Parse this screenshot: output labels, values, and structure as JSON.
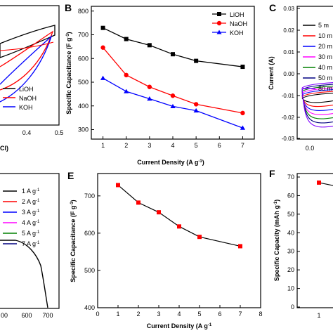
{
  "panels": {
    "A": {
      "legend": [
        "LiOH",
        "NaOH",
        "KOH"
      ],
      "xticks": [
        "0.4",
        "0.5"
      ],
      "xlabel_fragment": "Cl)"
    },
    "B": {
      "letter": "B"
    },
    "C": {
      "letter": "C",
      "ylabel": "Current (A)",
      "yticks": [
        "0.03",
        "0.02",
        "0.01",
        "0.00",
        "-0.01",
        "-0.02",
        "-0.03"
      ],
      "xticks": [
        "0.0"
      ],
      "legend": [
        "5 m",
        "10 m",
        "20 m",
        "30 m",
        "40 m",
        "50 m",
        "80 m"
      ]
    },
    "D": {
      "legend": [
        "1 A g",
        "2 A g",
        "3 A g",
        "4 A g",
        "5 A g",
        "7 A g"
      ],
      "legend_sup": "-1",
      "xticks": [
        "00",
        "600",
        "700"
      ]
    },
    "E": {
      "letter": "E"
    },
    "F": {
      "letter": "F",
      "ylabel": "Specific Capacity (mAh g",
      "ylabel_sup": "-1",
      "ylabel_end": ")",
      "yticks": [
        "70",
        "60",
        "50",
        "40",
        "30",
        "20",
        "10",
        "0"
      ],
      "xticks": [
        "1"
      ]
    }
  },
  "colors": {
    "LiOH": "#000000",
    "NaOH": "#ff0000",
    "KOH": "#0000ff",
    "E": "#000000",
    "E_marker": "#ff0000",
    "cv": [
      "#000000",
      "#ff0000",
      "#0000ff",
      "#ff00ff",
      "#008000",
      "#000080",
      "#8000ff"
    ],
    "gcd": [
      "#000000",
      "#ff0000",
      "#0000ff",
      "#ff00ff",
      "#008000",
      "#000080"
    ]
  },
  "chart_data": [
    {
      "panel": "B",
      "type": "line",
      "xlabel": "Current Density (A g",
      "xlabel_sup": "-1",
      "xlabel_end": ")",
      "ylabel": "Specific Capacitance (F g",
      "ylabel_sup": "-1",
      "ylabel_end": ")",
      "xlim": [
        0.5,
        7.5
      ],
      "ylim": [
        260,
        820
      ],
      "xticks": [
        1,
        2,
        3,
        4,
        5,
        6,
        7
      ],
      "yticks": [
        300,
        400,
        500,
        600,
        700,
        800
      ],
      "legend_position": "top-right",
      "series": [
        {
          "name": "LiOH",
          "marker": "square",
          "x": [
            1,
            2,
            3,
            4,
            5,
            7
          ],
          "values": [
            729,
            682,
            656,
            618,
            590,
            565
          ]
        },
        {
          "name": "NaOH",
          "marker": "circle",
          "x": [
            1,
            2,
            3,
            4,
            5,
            7
          ],
          "values": [
            646,
            530,
            480,
            443,
            407,
            370
          ]
        },
        {
          "name": "KOH",
          "marker": "triangle",
          "x": [
            1,
            2,
            3,
            4,
            5,
            7
          ],
          "values": [
            517,
            461,
            430,
            398,
            380,
            307
          ]
        }
      ]
    },
    {
      "panel": "E",
      "type": "line",
      "xlabel": "Current Density (A g",
      "xlabel_sup": "-1",
      "xlabel_end": "",
      "ylabel": "Specific Capacitance (F g",
      "ylabel_sup": "-1",
      "ylabel_end": ")",
      "xlim": [
        0,
        8
      ],
      "ylim": [
        400,
        760
      ],
      "xticks": [
        0,
        1,
        2,
        3,
        4,
        5,
        6,
        7,
        8
      ],
      "yticks": [
        400,
        500,
        600,
        700
      ],
      "series": [
        {
          "x": [
            1,
            2,
            3,
            4,
            5,
            7
          ],
          "values": [
            729,
            682,
            656,
            618,
            590,
            565
          ]
        }
      ]
    },
    {
      "panel": "F",
      "type": "line",
      "series": [
        {
          "x": [
            1
          ],
          "values": [
            67
          ]
        }
      ]
    }
  ]
}
